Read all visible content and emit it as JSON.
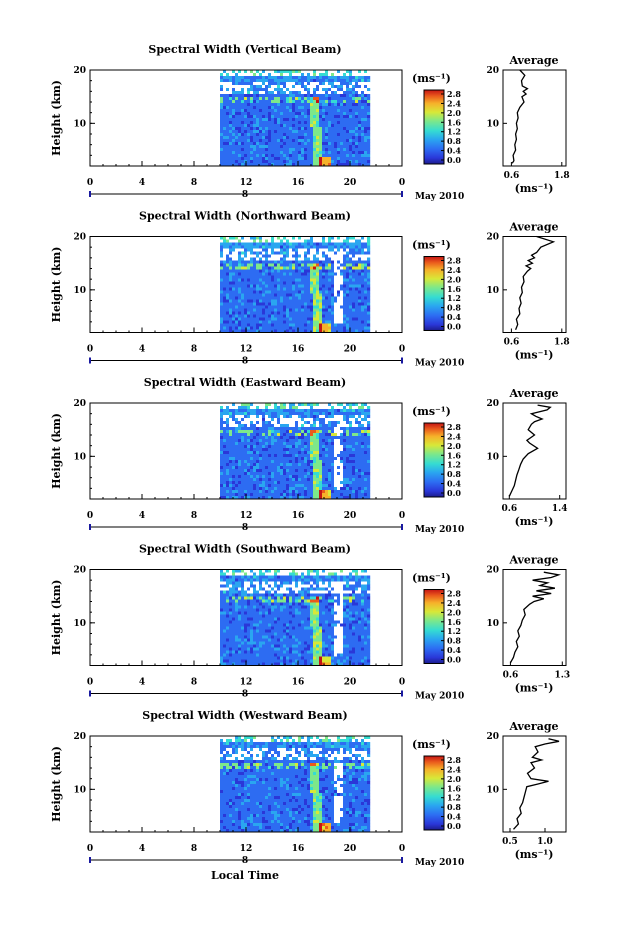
{
  "chart_data": {
    "type": "heatmap",
    "shared": {
      "ylabel": "Height (km)",
      "xlabel": "Local Time",
      "xticks": [
        "0",
        "4",
        "8",
        "12",
        "16",
        "20",
        "0"
      ],
      "yticks": [
        "10",
        "20"
      ],
      "date_label": "May 2010",
      "day_marker": "8",
      "colorbar_unit": "(ms⁻¹)",
      "colorbar_ticks": [
        "0.0",
        "0.4",
        "0.8",
        "1.2",
        "1.6",
        "2.0",
        "2.4",
        "2.8"
      ],
      "xlim": [
        0,
        24
      ],
      "ylim": [
        2,
        20
      ],
      "data_xlim": [
        10,
        21.5
      ],
      "profile_title": "Average",
      "profile_xlabel": "(ms⁻¹)",
      "colors": {
        "missing": "#ffffff",
        "colormap": [
          "#1c1c8c",
          "#2a37d8",
          "#2d6cf2",
          "#2aa6f0",
          "#35dcd2",
          "#7de88a",
          "#d8e838",
          "#f6b12a",
          "#ea5a1c",
          "#c41414"
        ]
      }
    },
    "panels": [
      {
        "title": "Spectral Width (Vertical Beam)",
        "profile_xticks": [
          "0.6",
          "1.8"
        ],
        "profile_xlim": [
          0.4,
          1.9
        ],
        "profile": [
          [
            0.62,
            2.5
          ],
          [
            0.66,
            3
          ],
          [
            0.64,
            4
          ],
          [
            0.7,
            5
          ],
          [
            0.68,
            6
          ],
          [
            0.72,
            7
          ],
          [
            0.7,
            8
          ],
          [
            0.74,
            9
          ],
          [
            0.72,
            10
          ],
          [
            0.76,
            11
          ],
          [
            0.74,
            12
          ],
          [
            0.8,
            13
          ],
          [
            0.9,
            14
          ],
          [
            0.85,
            15
          ],
          [
            0.95,
            15.5
          ],
          [
            0.88,
            16
          ],
          [
            0.98,
            16.5
          ],
          [
            0.86,
            17
          ],
          [
            0.84,
            18
          ],
          [
            0.92,
            19
          ],
          [
            0.8,
            20
          ]
        ]
      },
      {
        "title": "Spectral Width (Northward Beam)",
        "profile_xticks": [
          "0.6",
          "1.8"
        ],
        "profile_xlim": [
          0.4,
          1.9
        ],
        "profile": [
          [
            0.7,
            2.5
          ],
          [
            0.75,
            3.5
          ],
          [
            0.72,
            4.5
          ],
          [
            0.8,
            5.5
          ],
          [
            0.78,
            6.5
          ],
          [
            0.83,
            7.5
          ],
          [
            0.8,
            8.5
          ],
          [
            0.86,
            9.5
          ],
          [
            0.84,
            10.5
          ],
          [
            0.9,
            11.5
          ],
          [
            0.88,
            12.5
          ],
          [
            0.98,
            13.5
          ],
          [
            1.06,
            14
          ],
          [
            0.95,
            14.5
          ],
          [
            1.1,
            15
          ],
          [
            1.0,
            15.5
          ],
          [
            1.15,
            16
          ],
          [
            1.08,
            16.5
          ],
          [
            1.2,
            17
          ],
          [
            1.3,
            18
          ],
          [
            1.6,
            19
          ],
          [
            1.2,
            20
          ]
        ]
      },
      {
        "title": "Spectral Width (Eastward Beam)",
        "profile_xticks": [
          "0.6",
          "1.4"
        ],
        "profile_xlim": [
          0.5,
          1.5
        ],
        "profile": [
          [
            0.6,
            2.5
          ],
          [
            0.64,
            3.5
          ],
          [
            0.68,
            4.5
          ],
          [
            0.7,
            5.5
          ],
          [
            0.72,
            6.5
          ],
          [
            0.75,
            7.5
          ],
          [
            0.78,
            8.5
          ],
          [
            0.82,
            9.5
          ],
          [
            0.9,
            10.5
          ],
          [
            1.05,
            11.5
          ],
          [
            0.92,
            12.5
          ],
          [
            0.88,
            13
          ],
          [
            1.0,
            14
          ],
          [
            0.9,
            15
          ],
          [
            0.95,
            16
          ],
          [
            1.0,
            16.5
          ],
          [
            1.12,
            17
          ],
          [
            1.02,
            17.5
          ],
          [
            0.95,
            18
          ],
          [
            1.2,
            18.7
          ],
          [
            1.25,
            19.2
          ],
          [
            1.05,
            19.6
          ]
        ]
      },
      {
        "title": "Spectral Width (Southward Beam)",
        "profile_xticks": [
          "0.6",
          "1.3"
        ],
        "profile_xlim": [
          0.5,
          1.35
        ],
        "profile": [
          [
            0.6,
            2.5
          ],
          [
            0.64,
            3.5
          ],
          [
            0.66,
            4.5
          ],
          [
            0.7,
            5.5
          ],
          [
            0.68,
            6.5
          ],
          [
            0.72,
            7.5
          ],
          [
            0.7,
            8.5
          ],
          [
            0.74,
            9.5
          ],
          [
            0.76,
            10.5
          ],
          [
            0.8,
            11.5
          ],
          [
            0.78,
            12.5
          ],
          [
            0.86,
            13.5
          ],
          [
            0.92,
            14
          ],
          [
            1.05,
            14.5
          ],
          [
            0.9,
            15
          ],
          [
            1.15,
            15.5
          ],
          [
            0.95,
            16
          ],
          [
            1.2,
            16.5
          ],
          [
            1.0,
            17
          ],
          [
            1.1,
            17.5
          ],
          [
            0.9,
            18
          ],
          [
            1.15,
            18.5
          ],
          [
            1.25,
            19
          ],
          [
            1.05,
            19.5
          ]
        ]
      },
      {
        "title": "Spectral Width (Westward Beam)",
        "profile_xticks": [
          "0.5",
          "1.0"
        ],
        "profile_xlim": [
          0.4,
          1.3
        ],
        "profile": [
          [
            0.55,
            2.5
          ],
          [
            0.62,
            3.5
          ],
          [
            0.6,
            4.5
          ],
          [
            0.66,
            5.5
          ],
          [
            0.64,
            6.5
          ],
          [
            0.68,
            7.5
          ],
          [
            0.7,
            8.5
          ],
          [
            0.72,
            9.5
          ],
          [
            0.74,
            10.5
          ],
          [
            0.9,
            11
          ],
          [
            1.05,
            11.5
          ],
          [
            0.8,
            12
          ],
          [
            0.75,
            13
          ],
          [
            0.85,
            14
          ],
          [
            0.8,
            15
          ],
          [
            0.95,
            15.5
          ],
          [
            0.82,
            16
          ],
          [
            0.9,
            17
          ],
          [
            0.86,
            18
          ],
          [
            1.0,
            18.5
          ],
          [
            1.2,
            19
          ],
          [
            1.05,
            19.5
          ]
        ]
      }
    ]
  }
}
